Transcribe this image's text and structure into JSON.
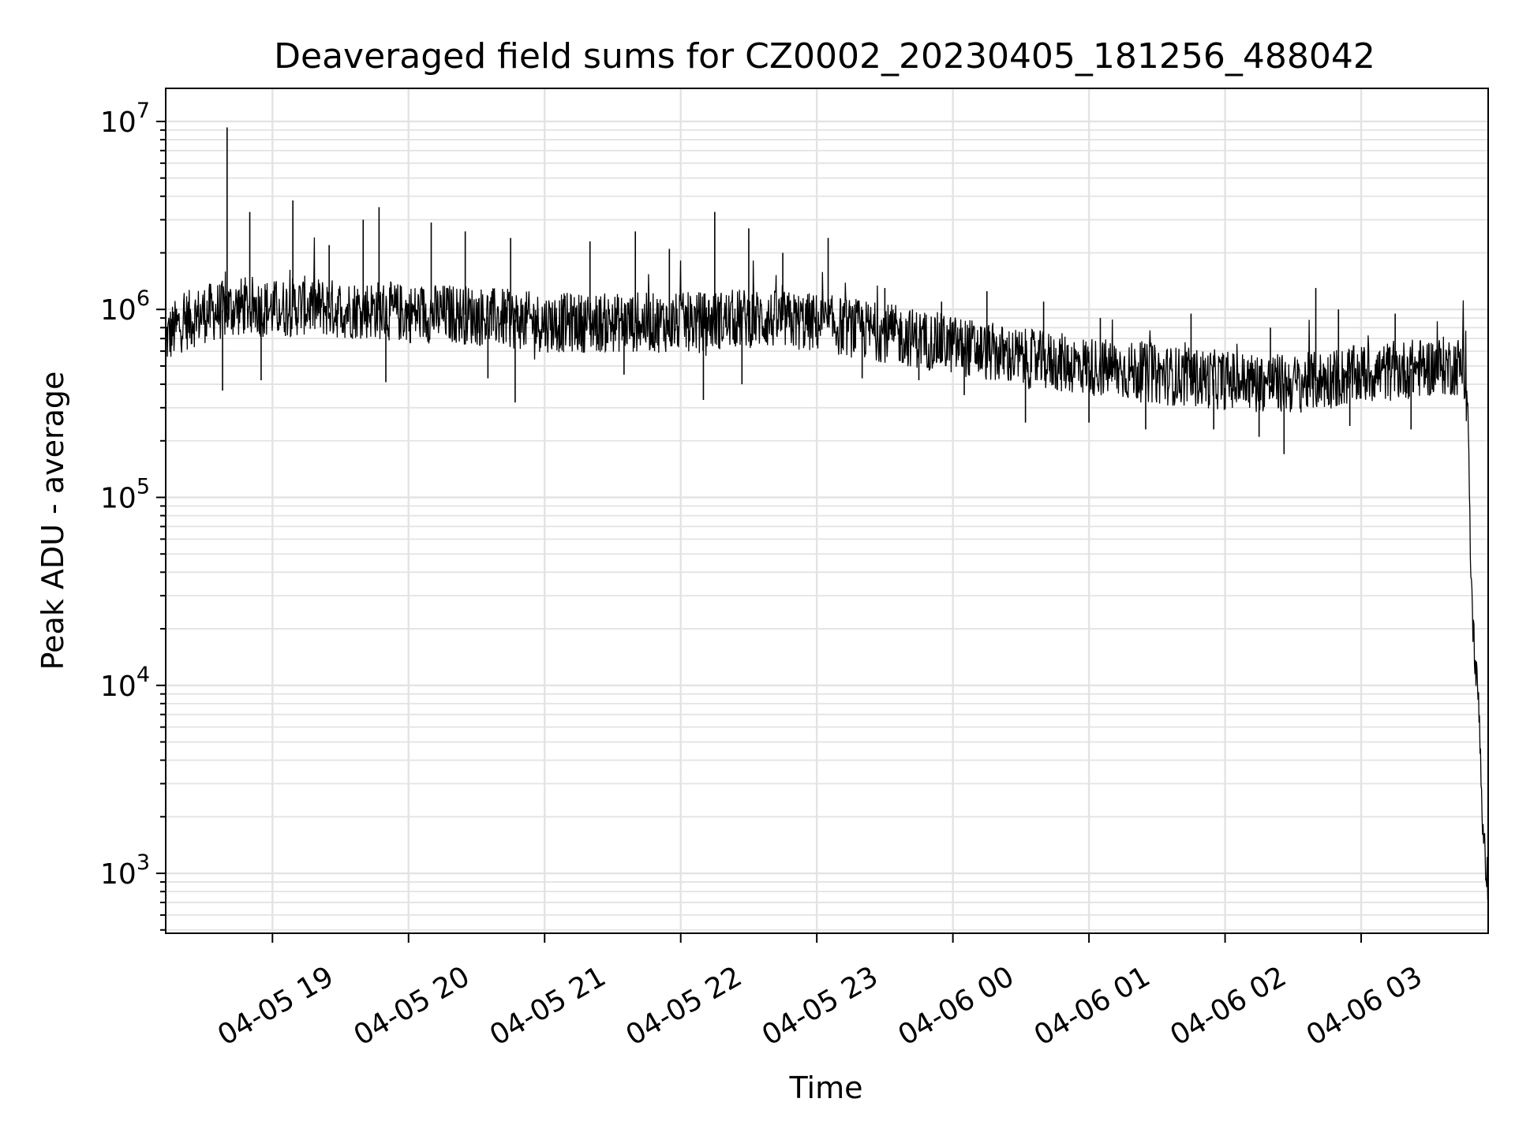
{
  "chart_data": {
    "type": "line",
    "title": "Deaveraged field sums for CZ0002_20230405_181256_488042",
    "xlabel": "Time",
    "ylabel": "Peak ADU - average",
    "yscale": "log",
    "ylim": [
      480,
      15000000
    ],
    "xlim": [
      "2023-04-05 18:12:56",
      "2023-04-06 03:56:00"
    ],
    "grid": true,
    "line_color": "#000000",
    "grid_color": "#e3e3e3",
    "x_ticks": [
      {
        "value": "2023-04-05 19:00",
        "label": "04-05 19"
      },
      {
        "value": "2023-04-05 20:00",
        "label": "04-05 20"
      },
      {
        "value": "2023-04-05 21:00",
        "label": "04-05 21"
      },
      {
        "value": "2023-04-05 22:00",
        "label": "04-05 22"
      },
      {
        "value": "2023-04-05 23:00",
        "label": "04-05 23"
      },
      {
        "value": "2023-04-06 00:00",
        "label": "04-06 00"
      },
      {
        "value": "2023-04-06 01:00",
        "label": "04-06 01"
      },
      {
        "value": "2023-04-06 02:00",
        "label": "04-06 02"
      },
      {
        "value": "2023-04-06 03:00",
        "label": "04-06 03"
      }
    ],
    "y_ticks": [
      {
        "value": 1000,
        "base": "10",
        "exp": "3"
      },
      {
        "value": 10000,
        "base": "10",
        "exp": "4"
      },
      {
        "value": 100000,
        "base": "10",
        "exp": "5"
      },
      {
        "value": 1000000,
        "base": "10",
        "exp": "6"
      },
      {
        "value": 10000000,
        "base": "10",
        "exp": "7"
      }
    ],
    "series": [
      {
        "x": [
          "2023-04-05 18:13",
          "2023-04-05 18:20",
          "2023-04-05 18:30",
          "2023-04-05 18:40",
          "2023-04-05 18:50",
          "2023-04-05 19:00",
          "2023-04-05 19:15",
          "2023-04-05 19:30",
          "2023-04-05 19:45",
          "2023-04-05 20:00",
          "2023-04-05 20:20",
          "2023-04-05 20:40",
          "2023-04-05 21:00",
          "2023-04-05 21:30",
          "2023-04-05 22:00",
          "2023-04-05 22:30",
          "2023-04-05 23:00",
          "2023-04-05 23:30",
          "2023-04-06 00:00",
          "2023-04-06 00:30",
          "2023-04-06 01:00",
          "2023-04-06 01:30",
          "2023-04-06 02:00",
          "2023-04-06 02:30",
          "2023-04-06 03:00",
          "2023-04-06 03:20",
          "2023-04-06 03:35",
          "2023-04-06 03:45",
          "2023-04-06 03:47",
          "2023-04-06 03:48",
          "2023-04-06 03:49",
          "2023-04-06 03:50",
          "2023-04-06 03:51",
          "2023-04-06 03:52",
          "2023-04-06 03:53",
          "2023-04-06 03:54",
          "2023-04-06 03:55",
          "2023-04-06 03:56"
        ],
        "y": [
          700000,
          850000,
          950000,
          1000000,
          1050000,
          1000000,
          1050000,
          1000000,
          1000000,
          950000,
          950000,
          900000,
          850000,
          850000,
          850000,
          900000,
          850000,
          750000,
          650000,
          550000,
          500000,
          450000,
          420000,
          400000,
          450000,
          480000,
          500000,
          500000,
          300000,
          60000,
          25000,
          15000,
          10000,
          8000,
          3000,
          1300,
          1200,
          800
        ]
      }
    ],
    "spikes": [
      {
        "x": "2023-04-05 18:40",
        "y": 9300000
      },
      {
        "x": "2023-04-05 18:50",
        "y": 3300000
      },
      {
        "x": "2023-04-05 19:09",
        "y": 3800000
      },
      {
        "x": "2023-04-05 19:25",
        "y": 2200000
      },
      {
        "x": "2023-04-05 19:40",
        "y": 3000000
      },
      {
        "x": "2023-04-05 19:47",
        "y": 3500000
      },
      {
        "x": "2023-04-05 20:10",
        "y": 2900000
      },
      {
        "x": "2023-04-05 20:25",
        "y": 2600000
      },
      {
        "x": "2023-04-05 20:45",
        "y": 2400000
      },
      {
        "x": "2023-04-05 21:20",
        "y": 2300000
      },
      {
        "x": "2023-04-05 21:40",
        "y": 2600000
      },
      {
        "x": "2023-04-05 21:55",
        "y": 2100000
      },
      {
        "x": "2023-04-05 22:15",
        "y": 3300000
      },
      {
        "x": "2023-04-05 22:30",
        "y": 2700000
      },
      {
        "x": "2023-04-05 22:45",
        "y": 2000000
      },
      {
        "x": "2023-04-05 23:05",
        "y": 2400000
      },
      {
        "x": "2023-04-05 23:30",
        "y": 1300000
      },
      {
        "x": "2023-04-05 23:55",
        "y": 1100000
      },
      {
        "x": "2023-04-06 00:15",
        "y": 1250000
      },
      {
        "x": "2023-04-06 00:40",
        "y": 1100000
      },
      {
        "x": "2023-04-06 01:05",
        "y": 900000
      },
      {
        "x": "2023-04-06 01:45",
        "y": 950000
      },
      {
        "x": "2023-04-06 02:20",
        "y": 800000
      },
      {
        "x": "2023-04-06 02:40",
        "y": 1300000
      },
      {
        "x": "2023-04-06 02:50",
        "y": 1000000
      },
      {
        "x": "2023-04-06 03:15",
        "y": 950000
      }
    ],
    "dips": [
      {
        "x": "2023-04-05 18:38",
        "y": 370000
      },
      {
        "x": "2023-04-05 18:55",
        "y": 420000
      },
      {
        "x": "2023-04-05 19:50",
        "y": 410000
      },
      {
        "x": "2023-04-05 20:35",
        "y": 430000
      },
      {
        "x": "2023-04-05 20:47",
        "y": 320000
      },
      {
        "x": "2023-04-05 21:35",
        "y": 450000
      },
      {
        "x": "2023-04-05 22:10",
        "y": 330000
      },
      {
        "x": "2023-04-05 22:27",
        "y": 400000
      },
      {
        "x": "2023-04-05 23:20",
        "y": 430000
      },
      {
        "x": "2023-04-05 23:45",
        "y": 420000
      },
      {
        "x": "2023-04-06 00:05",
        "y": 350000
      },
      {
        "x": "2023-04-06 00:32",
        "y": 250000
      },
      {
        "x": "2023-04-06 01:00",
        "y": 250000
      },
      {
        "x": "2023-04-06 01:25",
        "y": 230000
      },
      {
        "x": "2023-04-06 01:55",
        "y": 230000
      },
      {
        "x": "2023-04-06 02:15",
        "y": 210000
      },
      {
        "x": "2023-04-06 02:26",
        "y": 170000
      },
      {
        "x": "2023-04-06 02:55",
        "y": 240000
      },
      {
        "x": "2023-04-06 03:22",
        "y": 230000
      }
    ]
  }
}
